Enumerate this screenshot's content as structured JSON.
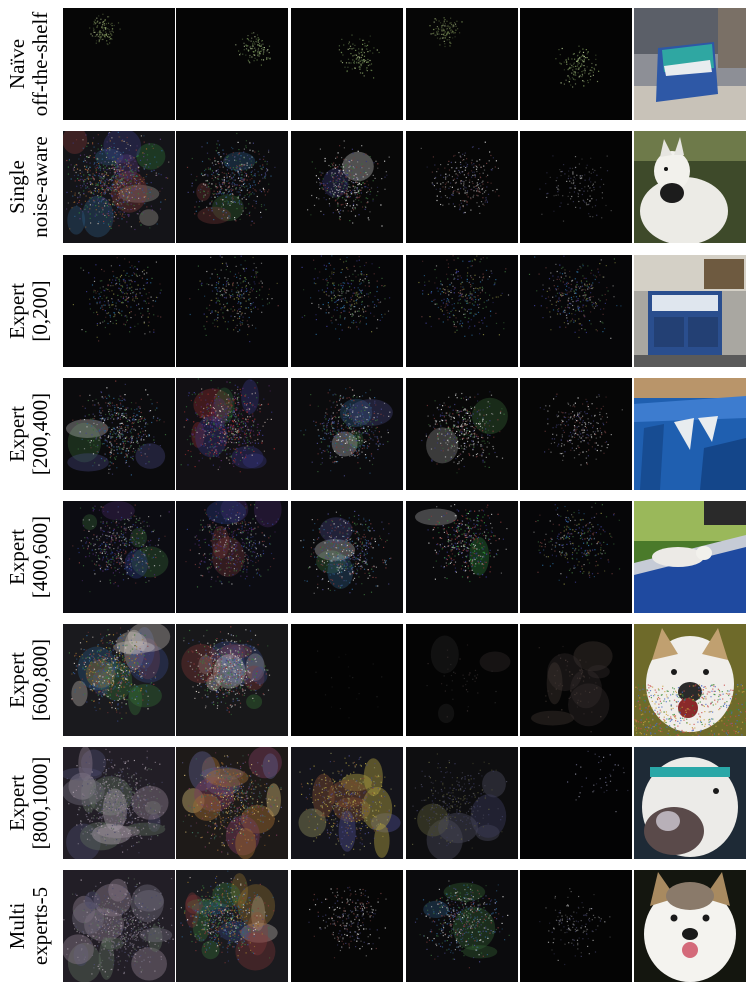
{
  "rows": [
    {
      "line1": "Naïve",
      "line2": "off-the-shelf",
      "maps": [
        "sparse-green-top",
        "sparse-green-right",
        "sparse-green",
        "sparse-green-top",
        "sparse-green-center"
      ],
      "photo": "cyan-box-on-table"
    },
    {
      "line1": "Single",
      "line2": "noise-aware",
      "maps": [
        "dense-color",
        "medium-color",
        "medium-white",
        "sparse-white",
        "very-sparse"
      ],
      "photo": "white-dog"
    },
    {
      "line1": "Expert",
      "line2": "[0,200]",
      "maps": [
        "sparse-multicolor",
        "sparse-multicolor",
        "sparse-multicolor",
        "sparse-multicolor",
        "sparse-multicolor"
      ],
      "photo": "blue-mailbox-bins"
    },
    {
      "line1": "Expert",
      "line2": "[200,400]",
      "maps": [
        "medium-color",
        "dense-red",
        "medium-color",
        "medium-white",
        "sparse-white"
      ],
      "photo": "blue-tarp"
    },
    {
      "line1": "Expert",
      "line2": "[400,600]",
      "maps": [
        "medium-color-blue",
        "medium-color-blue",
        "medium-color",
        "medium-green",
        "sparse-multicolor"
      ],
      "photo": "white-dog-on-blue-ledge"
    },
    {
      "line1": "Expert",
      "line2": "[600,800]",
      "maps": [
        "dense-blocky",
        "dense-blocky-white",
        "near-black",
        "near-black-blobs",
        "dark-blobs"
      ],
      "photo": "husky-noisy"
    },
    {
      "line1": "Expert",
      "line2": "[800,1000]",
      "maps": [
        "smooth-blobs",
        "smooth-blobs-orange",
        "smooth-blobs-yellow",
        "smooth-blobs-dark",
        "near-black-dots"
      ],
      "photo": "dog-with-toy"
    },
    {
      "line1": "Multi",
      "line2": "experts-5",
      "maps": [
        "smooth-blobs",
        "dense-blocky",
        "sparse-white",
        "medium-color",
        "very-sparse"
      ],
      "photo": "husky-portrait"
    }
  ]
}
